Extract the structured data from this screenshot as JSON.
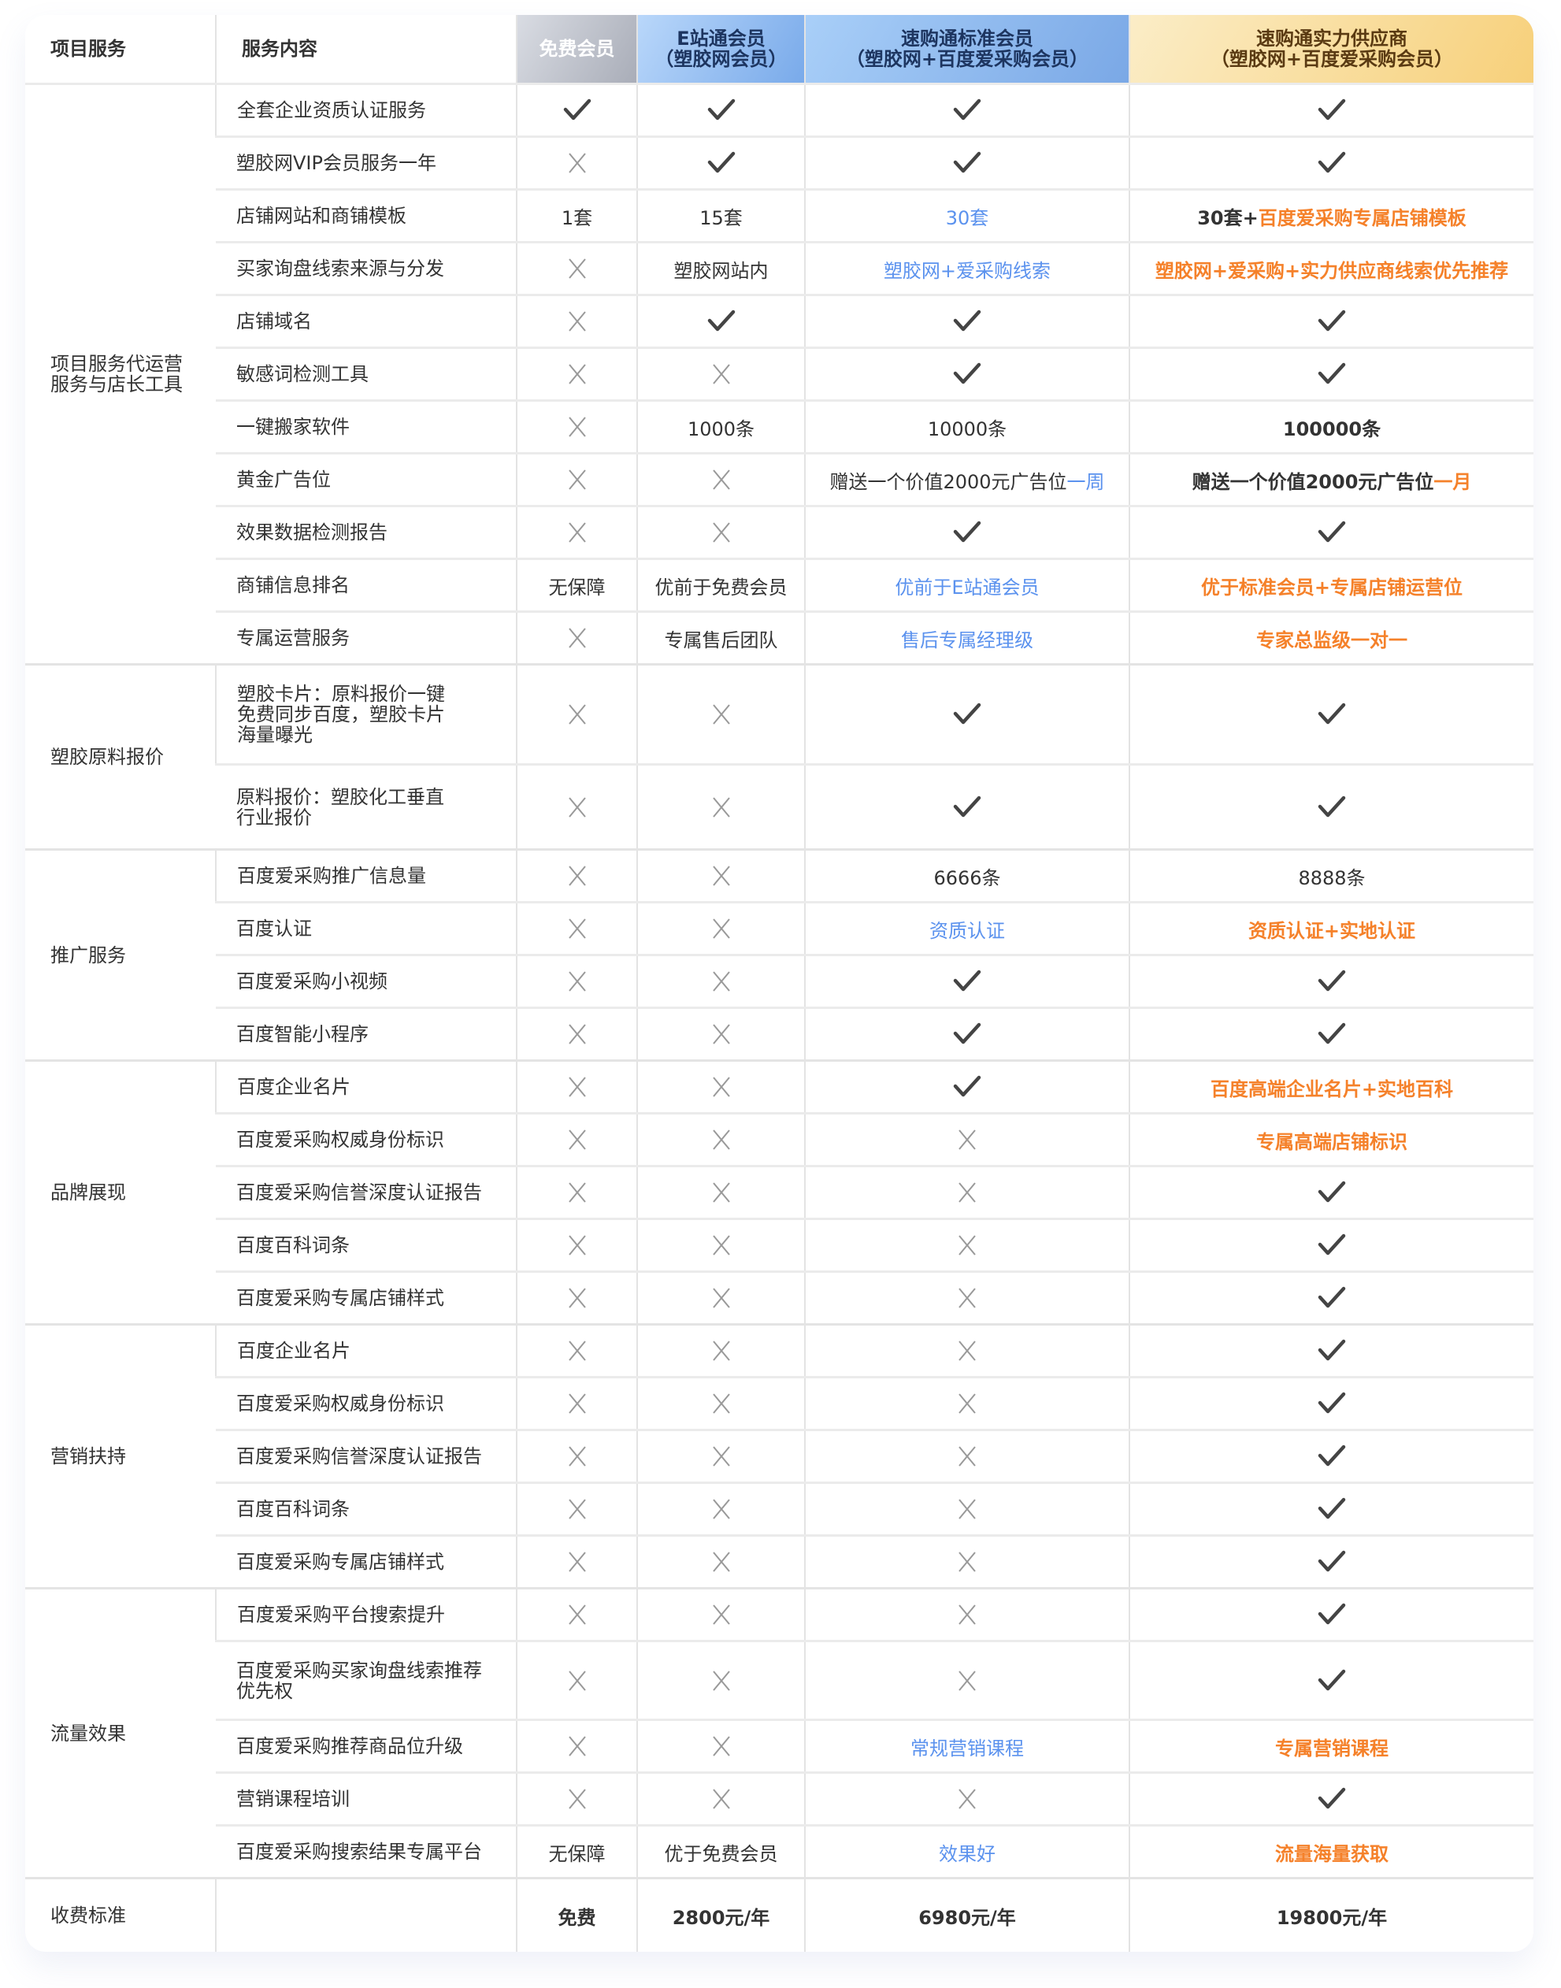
{
  "header": [
    "项目服务",
    "服务内容",
    "免费会员",
    "E站通会员\n（塑胶网会员）",
    "速购通标准会员\n（塑胶网+百度爱采购会员）",
    "速购通实力供应商\n（塑胶网+百度爱采购会员）"
  ],
  "colors": {
    "blue": "#5b92ee",
    "orange": "#f5812a",
    "check": "#444444",
    "cross": "#999999"
  },
  "icons": {
    "Y": "check-icon",
    "N": "cross-icon"
  },
  "sections": [
    {
      "label": "项目服务代运营\n服务与店长工具",
      "rows": [
        {
          "name": "全套企业资质认证服务",
          "cells": [
            "Y",
            "Y",
            "Y",
            "Y"
          ]
        },
        {
          "name": "塑胶网VIP会员服务一年",
          "cells": [
            "N",
            "Y",
            "Y",
            "Y"
          ]
        },
        {
          "name": "店铺网站和商铺模板",
          "cells": [
            "1套",
            "15套",
            [
              [
                "30套",
                "b"
              ]
            ],
            [
              [
                "30套+",
                "db"
              ],
              [
                "百度爱采购专属店铺模板",
                "o"
              ]
            ]
          ]
        },
        {
          "name": "买家询盘线索来源与分发",
          "cells": [
            "N",
            "塑胶网站内",
            [
              [
                "塑胶网+爱采购线索",
                "b"
              ]
            ],
            [
              [
                "塑胶网+爱采购+实力供应商线索优先推荐",
                "o"
              ]
            ]
          ]
        },
        {
          "name": "店铺域名",
          "cells": [
            "N",
            "Y",
            "Y",
            "Y"
          ]
        },
        {
          "name": "敏感词检测工具",
          "cells": [
            "N",
            "N",
            "Y",
            "Y"
          ]
        },
        {
          "name": "一键搬家软件",
          "cells": [
            "N",
            "1000条",
            "10000条",
            [
              [
                "100000条",
                "db"
              ]
            ]
          ]
        },
        {
          "name": "黄金广告位",
          "cells": [
            "N",
            "N",
            [
              [
                "赠送一个价值2000元广告位",
                "d"
              ],
              [
                "一周",
                "b"
              ]
            ],
            [
              [
                "赠送一个价值2000元广告位",
                "db"
              ],
              [
                "一月",
                "o"
              ]
            ]
          ]
        },
        {
          "name": "效果数据检测报告",
          "cells": [
            "N",
            "N",
            "Y",
            "Y"
          ]
        },
        {
          "name": "商铺信息排名",
          "cells": [
            "无保障",
            "优前于免费会员",
            [
              [
                "优前于E站通会员",
                "b"
              ]
            ],
            [
              [
                "优于标准会员+专属店铺运营位",
                "o"
              ]
            ]
          ]
        },
        {
          "name": "专属运营服务",
          "cells": [
            "N",
            "专属售后团队",
            [
              [
                "售后专属经理级",
                "b"
              ]
            ],
            [
              [
                "专家总监级一对一",
                "o"
              ]
            ]
          ]
        }
      ]
    },
    {
      "label": "塑胶原料报价",
      "rows": [
        {
          "name": "塑胶卡片：原料报价一键\n免费同步百度，塑胶卡片\n海量曝光",
          "cells": [
            "N",
            "N",
            "Y",
            "Y"
          ]
        },
        {
          "name": "原料报价：塑胶化工垂直\n行业报价",
          "cells": [
            "N",
            "N",
            "Y",
            "Y"
          ]
        }
      ]
    },
    {
      "label": "推广服务",
      "rows": [
        {
          "name": "百度爱采购推广信息量",
          "cells": [
            "N",
            "N",
            "6666条",
            "8888条"
          ]
        },
        {
          "name": "百度认证",
          "cells": [
            "N",
            "N",
            [
              [
                "资质认证",
                "b"
              ]
            ],
            [
              [
                "资质认证+实地认证",
                "o"
              ]
            ]
          ]
        },
        {
          "name": "百度爱采购小视频",
          "cells": [
            "N",
            "N",
            "Y",
            "Y"
          ]
        },
        {
          "name": "百度智能小程序",
          "cells": [
            "N",
            "N",
            "Y",
            "Y"
          ]
        }
      ]
    },
    {
      "label": "品牌展现",
      "rows": [
        {
          "name": "百度企业名片",
          "cells": [
            "N",
            "N",
            "Y",
            [
              [
                "百度高端企业名片+实地百科",
                "o"
              ]
            ]
          ]
        },
        {
          "name": "百度爱采购权威身份标识",
          "cells": [
            "N",
            "N",
            "N",
            [
              [
                "专属高端店铺标识",
                "o"
              ]
            ]
          ]
        },
        {
          "name": "百度爱采购信誉深度认证报告",
          "cells": [
            "N",
            "N",
            "N",
            "Y"
          ]
        },
        {
          "name": "百度百科词条",
          "cells": [
            "N",
            "N",
            "N",
            "Y"
          ]
        },
        {
          "name": "百度爱采购专属店铺样式",
          "cells": [
            "N",
            "N",
            "N",
            "Y"
          ]
        }
      ]
    },
    {
      "label": "营销扶持",
      "rows": [
        {
          "name": "百度企业名片",
          "cells": [
            "N",
            "N",
            "N",
            "Y"
          ]
        },
        {
          "name": "百度爱采购权威身份标识",
          "cells": [
            "N",
            "N",
            "N",
            "Y"
          ]
        },
        {
          "name": "百度爱采购信誉深度认证报告",
          "cells": [
            "N",
            "N",
            "N",
            "Y"
          ]
        },
        {
          "name": "百度百科词条",
          "cells": [
            "N",
            "N",
            "N",
            "Y"
          ]
        },
        {
          "name": "百度爱采购专属店铺样式",
          "cells": [
            "N",
            "N",
            "N",
            "Y"
          ]
        }
      ]
    },
    {
      "label": "流量效果",
      "rows": [
        {
          "name": "百度爱采购平台搜索提升",
          "cells": [
            "N",
            "N",
            "N",
            "Y"
          ]
        },
        {
          "name": "百度爱采购买家询盘线索推荐\n优先权",
          "cells": [
            "N",
            "N",
            "N",
            "Y"
          ]
        },
        {
          "name": "百度爱采购推荐商品位升级",
          "cells": [
            "N",
            "N",
            [
              [
                "常规营销课程",
                "b"
              ]
            ],
            [
              [
                "专属营销课程",
                "o"
              ]
            ]
          ]
        },
        {
          "name": "营销课程培训",
          "cells": [
            "N",
            "N",
            "N",
            "Y"
          ]
        },
        {
          "name": "百度爱采购搜索结果专属平台",
          "cells": [
            "无保障",
            "优于免费会员",
            [
              [
                "效果好",
                "b"
              ]
            ],
            [
              [
                "流量海量获取",
                "o"
              ]
            ]
          ]
        }
      ]
    }
  ],
  "fee": {
    "label": "收费标准",
    "name": "",
    "cells": [
      "免费",
      "2800元/年",
      "6980元/年",
      "19800元/年"
    ]
  }
}
